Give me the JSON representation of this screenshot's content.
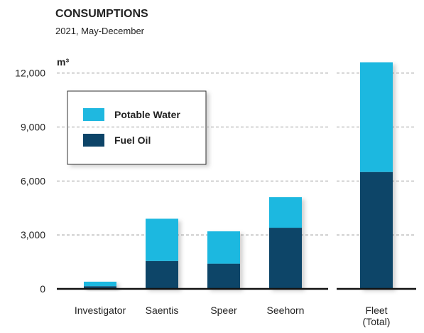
{
  "chart_data": {
    "type": "stacked_bar",
    "title": "CONSUMPTIONS",
    "subtitle": "2021, May-December",
    "y_label": "m³",
    "categories": [
      "Investigator",
      "Saentis",
      "Speer",
      "Seehorn",
      "Fleet (Total)"
    ],
    "series": [
      {
        "name": "Fuel Oil",
        "color": "#0d4468",
        "values": [
          150,
          1550,
          1400,
          3400,
          6500
        ]
      },
      {
        "name": "Potable Water",
        "color": "#1fb8e0",
        "values": [
          250,
          2350,
          1800,
          1700,
          6100
        ]
      }
    ],
    "ylim": [
      0,
      12700
    ],
    "yticks": [
      0,
      {
        "value": 3000,
        "label": "3,000"
      },
      {
        "value": 6000,
        "label": "6,000"
      },
      {
        "value": 9000,
        "label": "9,000"
      },
      {
        "value": 12000,
        "label": "12,000"
      }
    ],
    "grid": true,
    "legend": "upper left"
  }
}
